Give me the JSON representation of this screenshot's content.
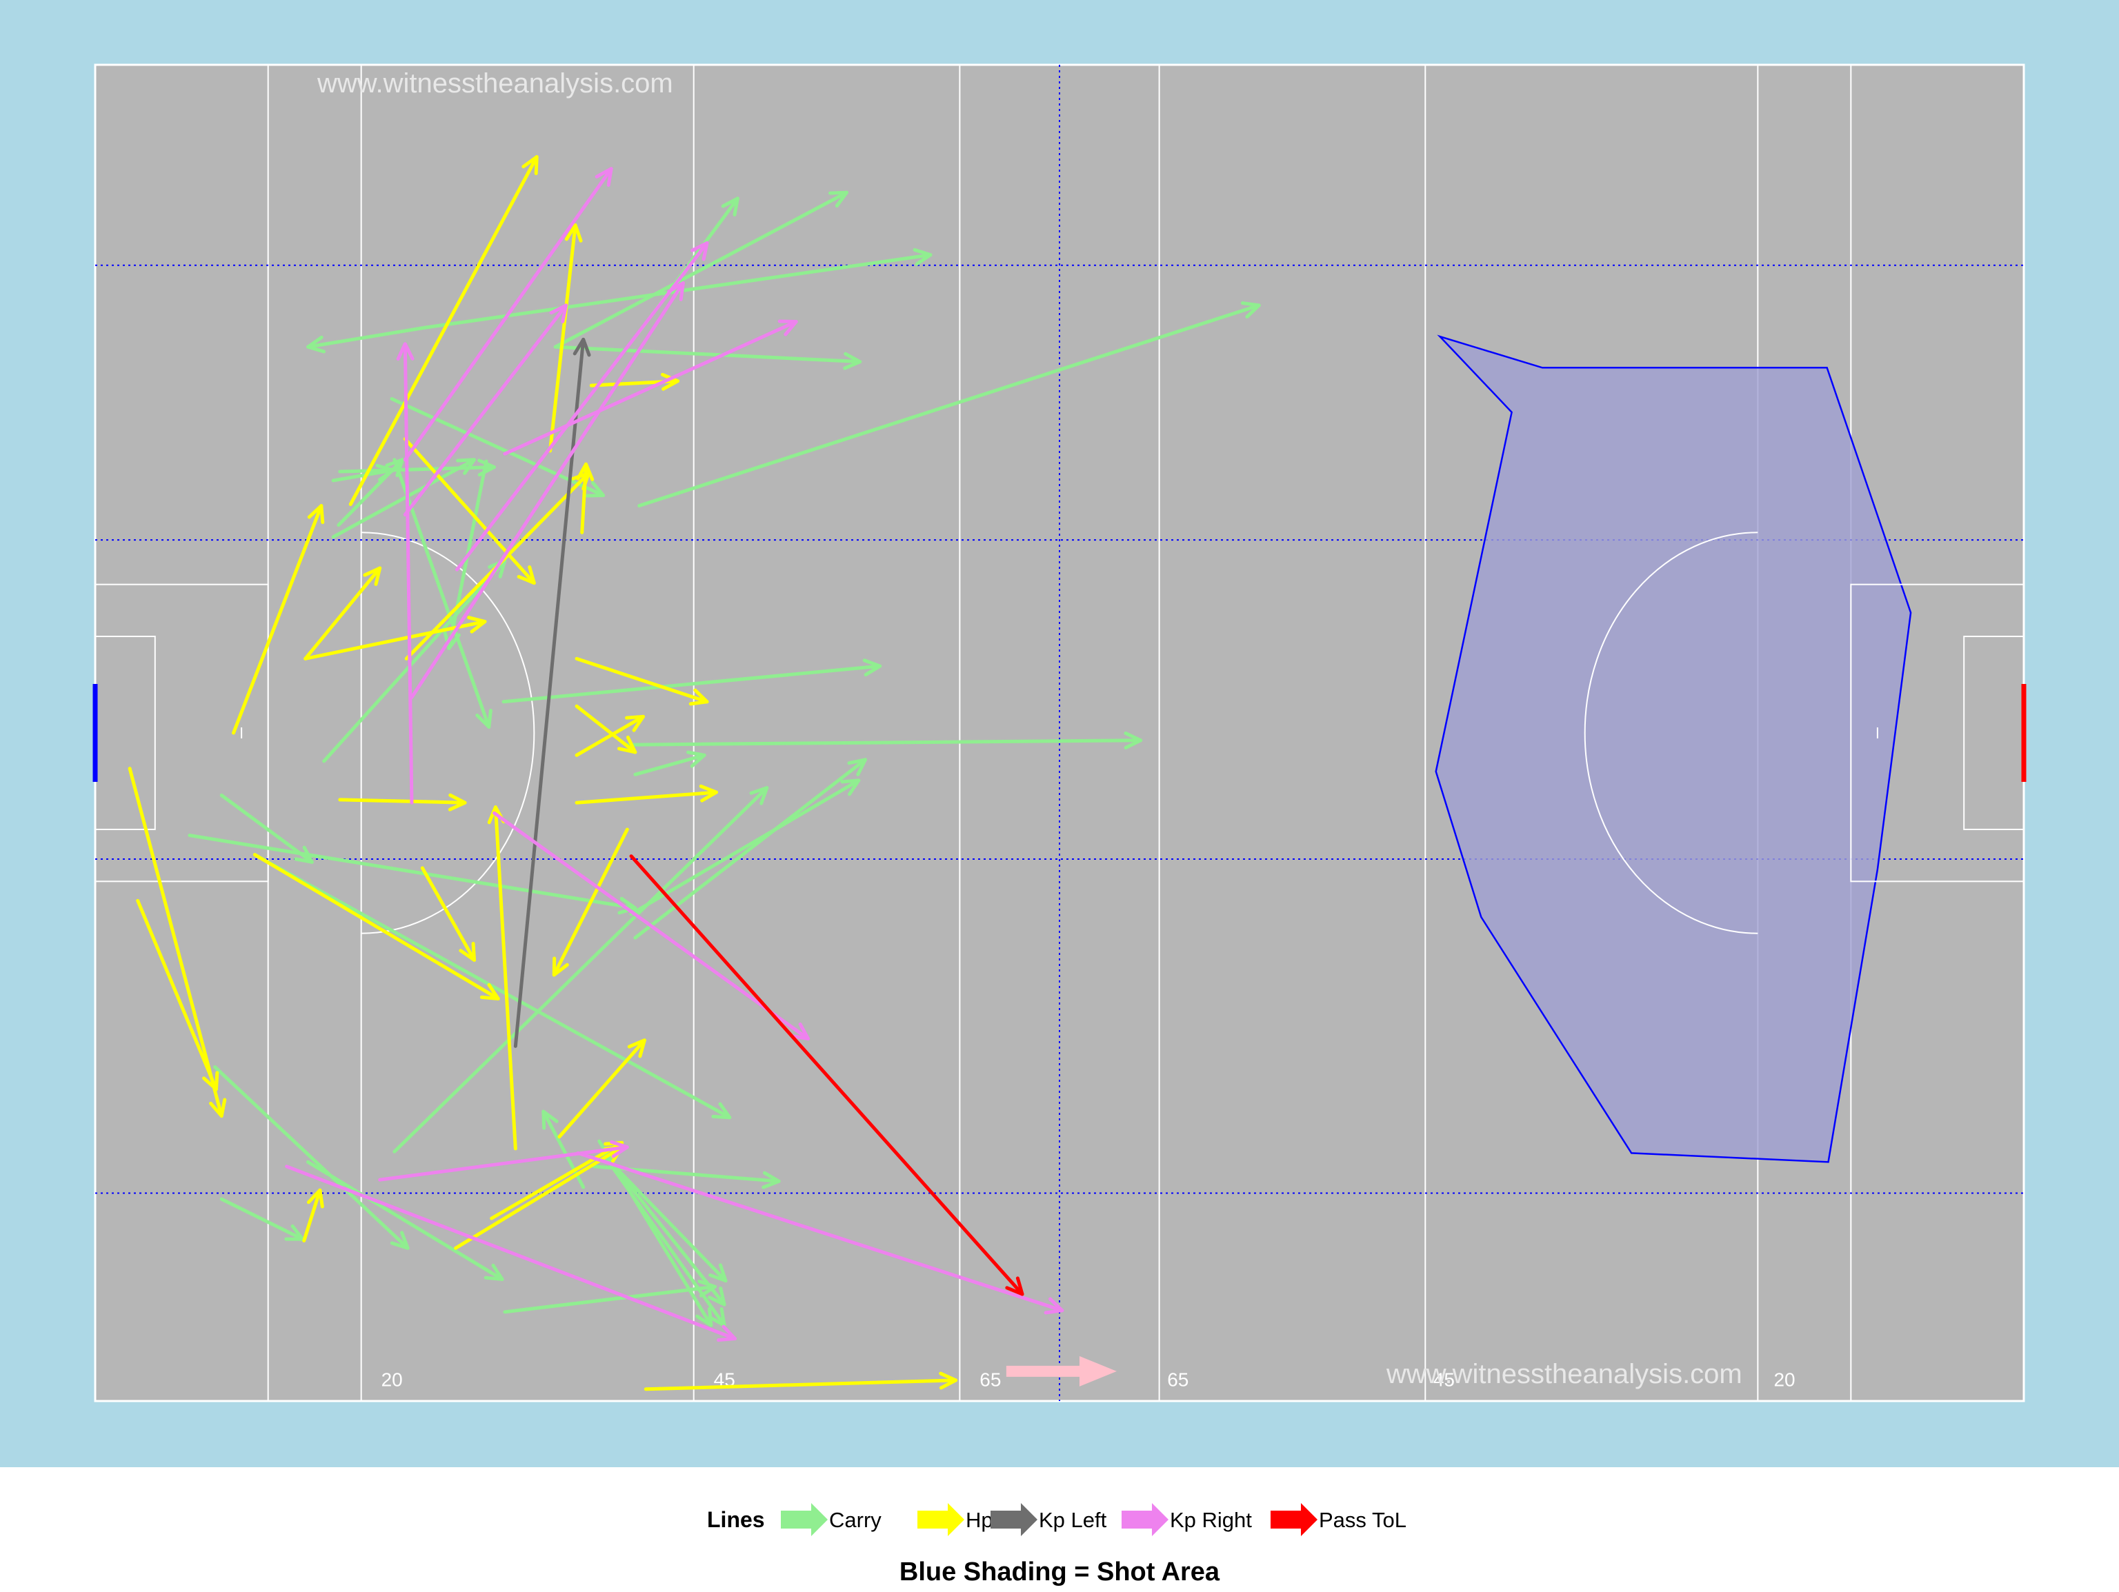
{
  "colors": {
    "panel_bg": "#add8e6",
    "pitch": "#b6b6b6",
    "pitch_line": "#ffffff",
    "grid_line": "#0000ff",
    "carry": "#90ee90",
    "hp": "#ffff00",
    "kp_left": "#6e6e6e",
    "kp_right": "#ee82ee",
    "pass_tol": "#ff0000",
    "shot_area_fill": "#a0a0d2",
    "shot_area_edge": "#0000ff",
    "direction_arrow": "#ffc0cb",
    "watermark": "#e8e8e8"
  },
  "watermark": {
    "top": "www.witnesstheanalysis.com",
    "bottom": "www.witnesstheanalysis.com"
  },
  "pitch_labels": [
    "20",
    "45",
    "65",
    "65",
    "45",
    "20"
  ],
  "legend": {
    "title": "Lines",
    "entries": [
      {
        "key": "carry",
        "label": "Carry"
      },
      {
        "key": "hp",
        "label": "Hp"
      },
      {
        "key": "kp_left",
        "label": "Kp Left"
      },
      {
        "key": "kp_right",
        "label": "Kp Right"
      },
      {
        "key": "pass_tol",
        "label": "Pass ToL"
      }
    ]
  },
  "caption": "Blue Shading = Shot Area",
  "chart_data": {
    "type": "line",
    "x_unit": "metres along pitch length",
    "y_unit": "metres across pitch width",
    "xlim": [
      0,
      145
    ],
    "ylim": [
      0,
      90
    ],
    "pitch_line_positions_x": [
      13,
      20,
      45,
      65,
      72.5,
      80,
      100,
      125,
      132
    ],
    "blue_dotted_grid_y": [
      14,
      36.5,
      58,
      76.5
    ],
    "shot_area_polygon": [
      [
        101.1,
        71.7
      ],
      [
        108.8,
        69.6
      ],
      [
        130.2,
        69.6
      ],
      [
        136.5,
        53.1
      ],
      [
        134.0,
        35.8
      ],
      [
        130.3,
        16.1
      ],
      [
        115.5,
        16.7
      ],
      [
        104.2,
        32.6
      ],
      [
        100.8,
        42.4
      ],
      [
        106.5,
        66.6
      ]
    ],
    "series": [
      {
        "name": "Carry",
        "key": "carry",
        "segments": [
          [
            [
              40.9,
              72.0
            ],
            [
              48.3,
              81.0
            ]
          ],
          [
            [
              34.6,
              71.0
            ],
            [
              56.5,
              81.4
            ]
          ],
          [
            [
              24.8,
              72.3
            ],
            [
              16.0,
              71.0
            ]
          ],
          [
            [
              34.6,
              71.0
            ],
            [
              57.5,
              70.0
            ]
          ],
          [
            [
              40.9,
              60.3
            ],
            [
              87.5,
              73.8
            ]
          ],
          [
            [
              24.8,
              72.3
            ],
            [
              62.8,
              77.2
            ]
          ],
          [
            [
              18.4,
              62.6
            ],
            [
              30.0,
              62.9
            ]
          ],
          [
            [
              17.9,
              62.0
            ],
            [
              22.4,
              62.7
            ]
          ],
          [
            [
              18.3,
              59.0
            ],
            [
              23.1,
              63.4
            ]
          ],
          [
            [
              22.5,
              63.4
            ],
            [
              29.6,
              45.4
            ]
          ],
          [
            [
              29.4,
              63.3
            ],
            [
              26.6,
              50.7
            ]
          ],
          [
            [
              17.9,
              58.2
            ],
            [
              28.5,
              63.4
            ]
          ],
          [
            [
              30.7,
              47.1
            ],
            [
              59.0,
              49.5
            ]
          ],
          [
            [
              39.9,
              44.2
            ],
            [
              78.6,
              44.5
            ]
          ],
          [
            [
              40.6,
              42.2
            ],
            [
              45.8,
              43.5
            ]
          ],
          [
            [
              22.3,
              67.5
            ],
            [
              38.2,
              61.0
            ]
          ],
          [
            [
              17.2,
              43.1
            ],
            [
              30.8,
              56.6
            ]
          ],
          [
            [
              7.1,
              38.1
            ],
            [
              40.6,
              33.2
            ]
          ],
          [
            [
              12.0,
              36.8
            ],
            [
              47.7,
              19.1
            ]
          ],
          [
            [
              9.5,
              40.8
            ],
            [
              16.3,
              36.3
            ]
          ],
          [
            [
              40.6,
              31.2
            ],
            [
              57.9,
              43.2
            ]
          ],
          [
            [
              40.3,
              32.8
            ],
            [
              57.4,
              41.8
            ]
          ],
          [
            [
              22.5,
              16.8
            ],
            [
              50.5,
              41.3
            ]
          ],
          [
            [
              9.0,
              22.5
            ],
            [
              23.5,
              10.3
            ]
          ],
          [
            [
              16.0,
              16.1
            ],
            [
              30.6,
              8.2
            ]
          ],
          [
            [
              9.5,
              13.6
            ],
            [
              15.6,
              10.9
            ]
          ],
          [
            [
              37.9,
              17.5
            ],
            [
              46.3,
              5.1
            ]
          ],
          [
            [
              37.5,
              15.8
            ],
            [
              51.4,
              14.8
            ]
          ],
          [
            [
              38.3,
              16.5
            ],
            [
              47.4,
              8.1
            ]
          ],
          [
            [
              38.3,
              16.5
            ],
            [
              47.3,
              5.1
            ]
          ],
          [
            [
              38.5,
              16.4
            ],
            [
              47.3,
              6.5
            ]
          ],
          [
            [
              30.8,
              6.0
            ],
            [
              46.6,
              7.7
            ]
          ],
          [
            [
              36.7,
              14.4
            ],
            [
              33.7,
              19.5
            ]
          ]
        ]
      },
      {
        "name": "Hp",
        "key": "hp",
        "segments": [
          [
            [
              19.2,
              60.4
            ],
            [
              33.2,
              83.8
            ]
          ],
          [
            [
              34.2,
              64.0
            ],
            [
              36.1,
              79.2
            ]
          ],
          [
            [
              37.3,
              68.4
            ],
            [
              43.8,
              68.7
            ]
          ],
          [
            [
              36.6,
              58.5
            ],
            [
              36.9,
              63.1
            ]
          ],
          [
            [
              23.3,
              64.8
            ],
            [
              33.0,
              55.1
            ]
          ],
          [
            [
              10.4,
              45.0
            ],
            [
              17.0,
              60.3
            ]
          ],
          [
            [
              15.8,
              50.0
            ],
            [
              21.4,
              56.1
            ]
          ],
          [
            [
              15.8,
              50.0
            ],
            [
              29.3,
              52.5
            ]
          ],
          [
            [
              23.4,
              50.0
            ],
            [
              37.1,
              62.5
            ]
          ],
          [
            [
              36.2,
              50.0
            ],
            [
              46.0,
              47.1
            ]
          ],
          [
            [
              36.2,
              46.8
            ],
            [
              40.6,
              43.7
            ]
          ],
          [
            [
              36.2,
              43.5
            ],
            [
              41.2,
              46.1
            ]
          ],
          [
            [
              36.2,
              40.3
            ],
            [
              46.7,
              41.0
            ]
          ],
          [
            [
              18.4,
              40.5
            ],
            [
              27.8,
              40.3
            ]
          ],
          [
            [
              40.0,
              38.5
            ],
            [
              34.5,
              28.7
            ]
          ],
          [
            [
              31.6,
              17.0
            ],
            [
              30.1,
              40.0
            ]
          ],
          [
            [
              24.6,
              35.9
            ],
            [
              28.5,
              29.7
            ]
          ],
          [
            [
              12.0,
              36.8
            ],
            [
              30.3,
              27.1
            ]
          ],
          [
            [
              2.6,
              42.6
            ],
            [
              9.5,
              19.2
            ]
          ],
          [
            [
              3.2,
              33.7
            ],
            [
              9.1,
              21.0
            ]
          ],
          [
            [
              34.9,
              17.8
            ],
            [
              41.3,
              24.3
            ]
          ],
          [
            [
              29.8,
              12.3
            ],
            [
              39.6,
              17.4
            ]
          ],
          [
            [
              27.1,
              10.3
            ],
            [
              39.6,
              17.1
            ]
          ],
          [
            [
              15.7,
              10.8
            ],
            [
              16.9,
              14.2
            ]
          ],
          [
            [
              41.4,
              0.8
            ],
            [
              64.7,
              1.4
            ]
          ]
        ]
      },
      {
        "name": "Kp Left",
        "key": "kp_left",
        "segments": [
          [
            [
              31.6,
              23.9
            ],
            [
              36.7,
              71.5
            ]
          ]
        ]
      },
      {
        "name": "Kp Right",
        "key": "kp_right",
        "segments": [
          [
            [
              23.3,
              63.4
            ],
            [
              38.8,
              83.0
            ]
          ],
          [
            [
              23.3,
              59.7
            ],
            [
              35.4,
              73.8
            ]
          ],
          [
            [
              27.2,
              56.0
            ],
            [
              46.0,
              78.0
            ]
          ],
          [
            [
              30.8,
              63.8
            ],
            [
              52.7,
              72.7
            ]
          ],
          [
            [
              23.8,
              47.4
            ],
            [
              44.2,
              75.3
            ]
          ],
          [
            [
              23.8,
              40.3
            ],
            [
              23.3,
              71.2
            ]
          ],
          [
            [
              30.0,
              39.6
            ],
            [
              53.6,
              24.4
            ]
          ],
          [
            [
              21.4,
              14.9
            ],
            [
              40.0,
              17.1
            ]
          ],
          [
            [
              14.4,
              15.8
            ],
            [
              48.1,
              4.2
            ]
          ],
          [
            [
              36.3,
              16.7
            ],
            [
              72.7,
              6.1
            ]
          ]
        ]
      },
      {
        "name": "Pass ToL",
        "key": "pass_tol",
        "segments": [
          [
            [
              40.3,
              36.7
            ],
            [
              69.7,
              7.2
            ]
          ]
        ]
      }
    ]
  }
}
